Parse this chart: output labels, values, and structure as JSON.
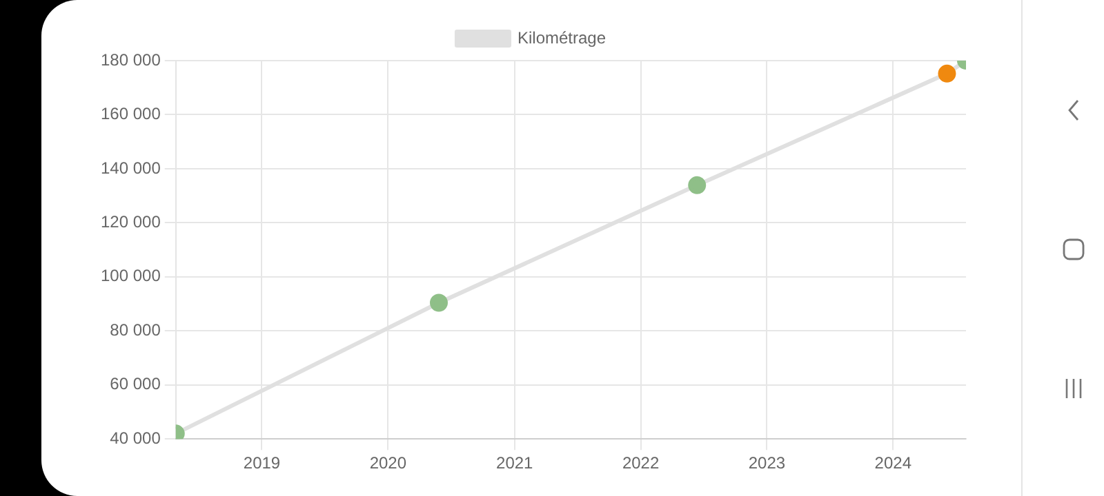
{
  "chart_data": {
    "type": "line",
    "x": [
      "2018-04-27",
      "2020-05-27",
      "2022-06-13",
      "2024-06-05",
      "2024-07-30"
    ],
    "series": [
      {
        "name": "Kilométrage",
        "color": "#e0e0e0",
        "colors": [
          "#8fbf88",
          "#8fbf88",
          "#8fbf88",
          "#f0890f",
          "#8fbf88"
        ],
        "values": [
          42000,
          90400,
          133900,
          175200,
          180000
        ]
      }
    ],
    "xlim": [
      "2018-04-27",
      "2024-07-30"
    ],
    "xticks": [
      {
        "value": "2019-01-01",
        "label": "2019"
      },
      {
        "value": "2020-01-01",
        "label": "2020"
      },
      {
        "value": "2021-01-01",
        "label": "2021"
      },
      {
        "value": "2022-01-01",
        "label": "2022"
      },
      {
        "value": "2023-01-01",
        "label": "2023"
      },
      {
        "value": "2024-01-01",
        "label": "2024"
      }
    ],
    "ylim": [
      40000,
      180000
    ],
    "yticks": [
      {
        "value": 40000,
        "label": "40 000"
      },
      {
        "value": 60000,
        "label": "60 000"
      },
      {
        "value": 80000,
        "label": "80 000"
      },
      {
        "value": 100000,
        "label": "100 000"
      },
      {
        "value": 120000,
        "label": "120 000"
      },
      {
        "value": 140000,
        "label": "140 000"
      },
      {
        "value": 160000,
        "label": "160 000"
      },
      {
        "value": 180000,
        "label": "180 000"
      }
    ],
    "grid": true,
    "legend": "top",
    "marker": "circle",
    "line_style": "solid"
  }
}
